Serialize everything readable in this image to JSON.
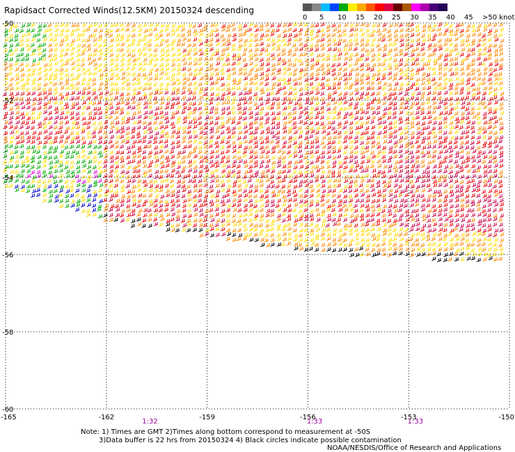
{
  "title": "Rapidsact Corrected Winds(12.5KM) 20150324 descending",
  "legend": {
    "colors": [
      "#555555",
      "#888888",
      "#00bbff",
      "#0044ff",
      "#00aa00",
      "#ffee00",
      "#ffaa00",
      "#ff5500",
      "#ff0000",
      "#dd0044",
      "#660000",
      "#aa5500",
      "#ff00ff",
      "#aa00aa",
      "#440077",
      "#220055"
    ],
    "labels": [
      "0",
      "5",
      "10",
      "15",
      "20",
      "25",
      "30",
      "35",
      "40",
      "45",
      ">50 knots"
    ]
  },
  "axes": {
    "lat_labels": [
      "-50",
      "-52",
      "-54",
      "-56",
      "-58",
      "-60"
    ],
    "lon_labels": [
      "-165",
      "-162",
      "-159",
      "-156",
      "-153",
      "-150"
    ],
    "lat_range": [
      -60,
      -50
    ],
    "lon_range": [
      -165,
      -150
    ],
    "grid": true
  },
  "times": [
    {
      "label": "1:32",
      "lon": -160.7
    },
    {
      "label": "1:33",
      "lon": -155.8
    },
    {
      "label": "1:33",
      "lon": -152.8
    }
  ],
  "notes": {
    "line1": "Note: 1) Times are GMT 2)Times along bottom correspond to measurement at -50S",
    "line2": "3)Data buffer is 22 hrs from 20150324 4) Black circles indicate possible contamination",
    "credit": "NOAA/NESDIS/Office of Research and Applications"
  },
  "wind_colors": {
    "green": "#00aa00",
    "yellow": "#ffdd00",
    "orange": "#ff8800",
    "red": "#ee0000",
    "crimson": "#cc0044",
    "magenta": "#dd00dd",
    "blue": "#0000cc",
    "black": "#000000"
  }
}
